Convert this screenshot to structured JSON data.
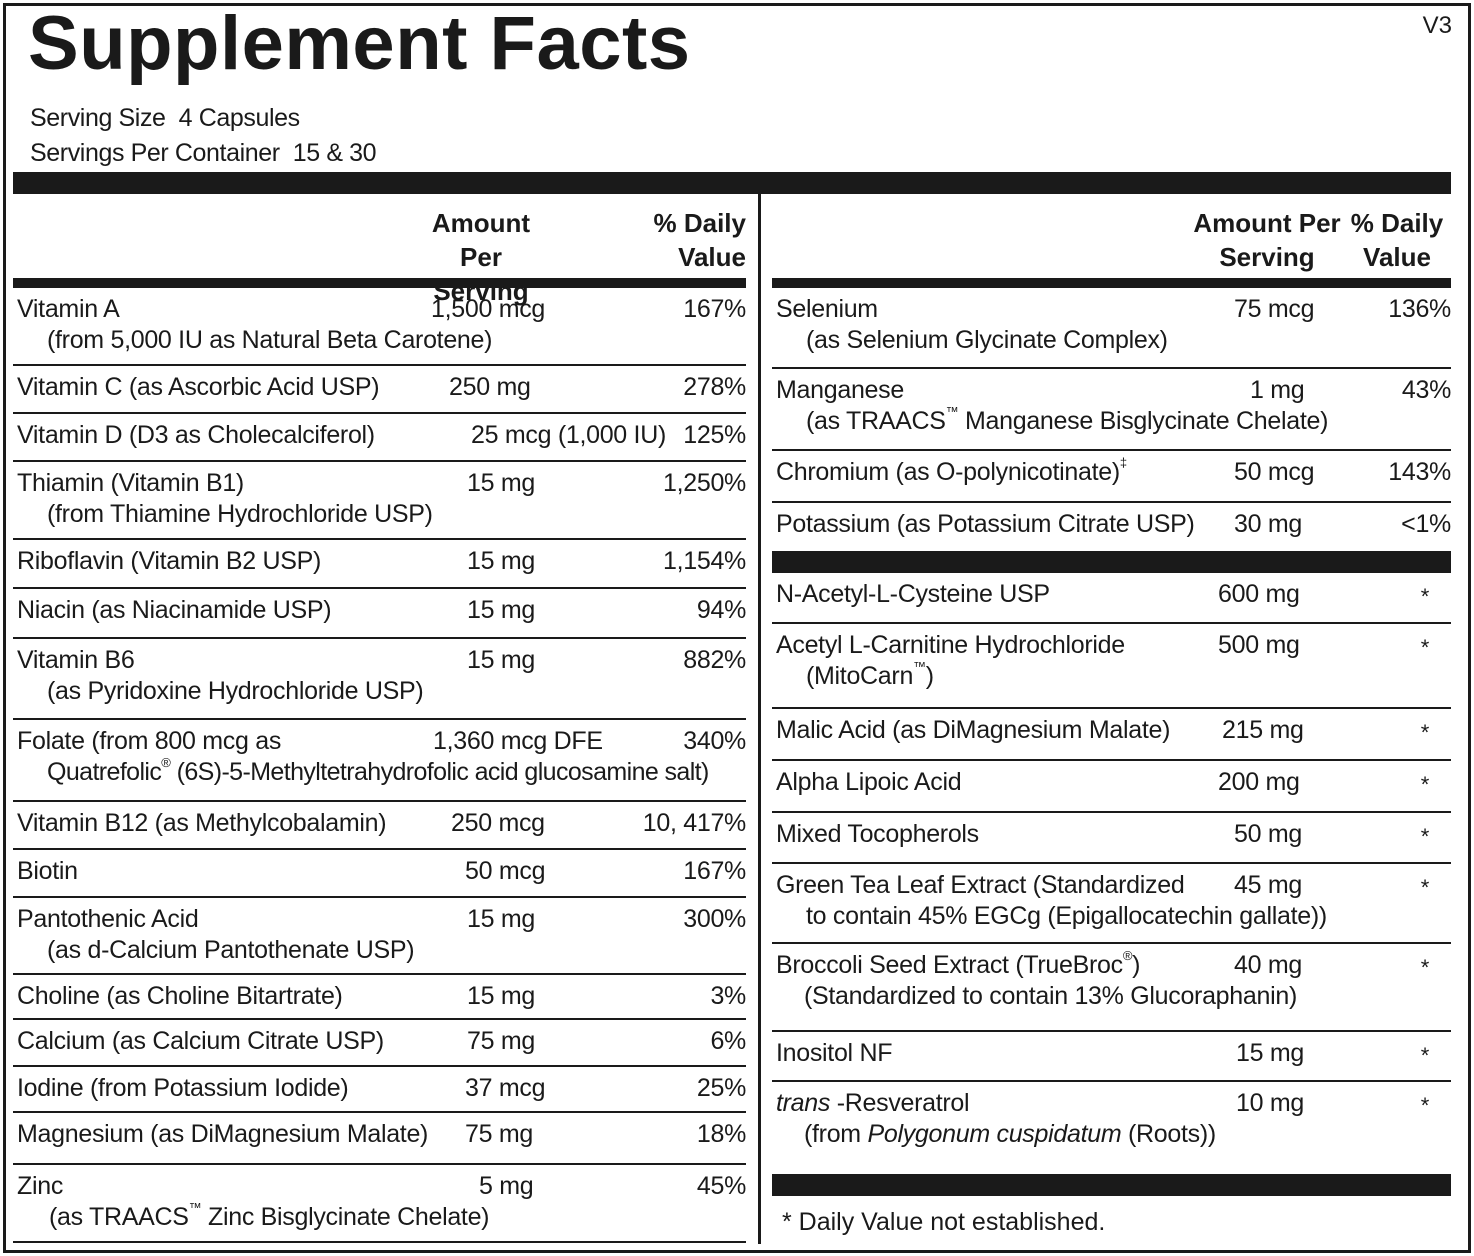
{
  "title": "Supplement Facts",
  "version": "V3",
  "serving_size_label": "Serving Size",
  "serving_size_value": "4 Capsules",
  "servings_per_container_label": "Servings Per Container",
  "servings_per_container_value": "15 & 30",
  "header": {
    "amount_line1": "Amount Per",
    "amount_line2": "Serving",
    "dv_line1": "% Daily",
    "dv_line2": "Value"
  },
  "left_rows": [
    {
      "name": "Vitamin A",
      "sub": "(from 5,000 IU as Natural Beta Carotene)",
      "amount": "1,500 mcg",
      "dv": "167%"
    },
    {
      "name": "Vitamin C (as Ascorbic Acid USP)",
      "amount": "250 mg",
      "dv": "278%"
    },
    {
      "name": "Vitamin D (D3 as Cholecalciferol)",
      "amount": "25 mcg (1,000 IU)",
      "dv": "125%"
    },
    {
      "name": "Thiamin (Vitamin B1)",
      "sub": "(from Thiamine Hydrochloride USP)",
      "amount": "15 mg",
      "dv": "1,250%"
    },
    {
      "name": "Riboflavin (Vitamin B2 USP)",
      "amount": "15 mg",
      "dv": "1,154%"
    },
    {
      "name": "Niacin (as Niacinamide USP)",
      "amount": "15 mg",
      "dv": "94%"
    },
    {
      "name": "Vitamin B6",
      "sub": "(as Pyridoxine Hydrochloride USP)",
      "amount": "15 mg",
      "dv": "882%"
    },
    {
      "name": "Folate (from 800 mcg as",
      "sub_a": "Quatrefolic",
      "sub_b": " (6S)-5-Methyltetrahydrofolic acid glucosamine salt)",
      "amount": "1,360 mcg DFE",
      "dv": "340%"
    },
    {
      "name": "Vitamin B12 (as Methylcobalamin)",
      "amount": "250 mcg",
      "dv": "10, 417%"
    },
    {
      "name": "Biotin",
      "amount": "50 mcg",
      "dv": "167%"
    },
    {
      "name": "Pantothenic Acid",
      "sub": "(as d-Calcium Pantothenate USP)",
      "amount": "15 mg",
      "dv": "300%"
    },
    {
      "name": "Choline (as Choline Bitartrate)",
      "amount": "15 mg",
      "dv": "3%"
    },
    {
      "name": "Calcium (as Calcium Citrate USP)",
      "amount": "75 mg",
      "dv": "6%"
    },
    {
      "name": "Iodine (from Potassium Iodide)",
      "amount": "37 mcg",
      "dv": "25%"
    },
    {
      "name": "Magnesium (as DiMagnesium Malate)",
      "amount": "75 mg",
      "dv": "18%"
    },
    {
      "name": "Zinc",
      "sub_a": "(as TRAACS",
      "sub_b": " Zinc Bisglycinate Chelate)",
      "amount": "5 mg",
      "dv": "45%"
    }
  ],
  "right_rows_a": [
    {
      "name": "Selenium",
      "sub": "(as Selenium Glycinate Complex)",
      "amount": "75 mcg",
      "dv": "136%"
    },
    {
      "name": "Manganese",
      "sub_a": "(as TRAACS",
      "sub_b": " Manganese Bisglycinate Chelate)",
      "amount": "1 mg",
      "dv": "43%"
    },
    {
      "name": "Chromium (as O-polynicotinate)",
      "amount": "50 mcg",
      "dv": "143%"
    },
    {
      "name": "Potassium (as Potassium Citrate USP)",
      "amount": "30 mg",
      "dv": "<1%"
    }
  ],
  "right_rows_b": [
    {
      "name": "N-Acetyl-L-Cysteine USP",
      "amount": "600 mg",
      "dv": "*"
    },
    {
      "name": "Acetyl L-Carnitine Hydrochloride",
      "sub_a": "(MitoCarn",
      "sub_b": ")",
      "amount": "500 mg",
      "dv": "*"
    },
    {
      "name": "Malic Acid (as DiMagnesium Malate)",
      "amount": "215 mg",
      "dv": "*"
    },
    {
      "name": "Alpha Lipoic Acid",
      "amount": "200 mg",
      "dv": "*"
    },
    {
      "name": "Mixed Tocopherols",
      "amount": "50 mg",
      "dv": "*"
    },
    {
      "name": "Green Tea Leaf Extract (Standardized",
      "sub": "to contain 45% EGCg (Epigallocatechin gallate))",
      "amount": "45 mg",
      "dv": "*"
    },
    {
      "name": "Broccoli Seed Extract (TrueBroc",
      "name_b": ")",
      "sub": "(Standardized to contain 13% Glucoraphanin)",
      "amount": "40 mg",
      "dv": "*"
    },
    {
      "name": "Inositol NF",
      "amount": "15 mg",
      "dv": "*"
    },
    {
      "name_i": "trans",
      "name": " -Resveratrol",
      "sub_a": "(from ",
      "sub_i": "Polygonum cuspidatum",
      "sub_b": " (Roots))",
      "amount": "10 mg",
      "dv": "*"
    }
  ],
  "marks": {
    "registered": "®",
    "trademark": "™",
    "double_dagger": "‡"
  },
  "footnote": "*  Daily Value not established."
}
